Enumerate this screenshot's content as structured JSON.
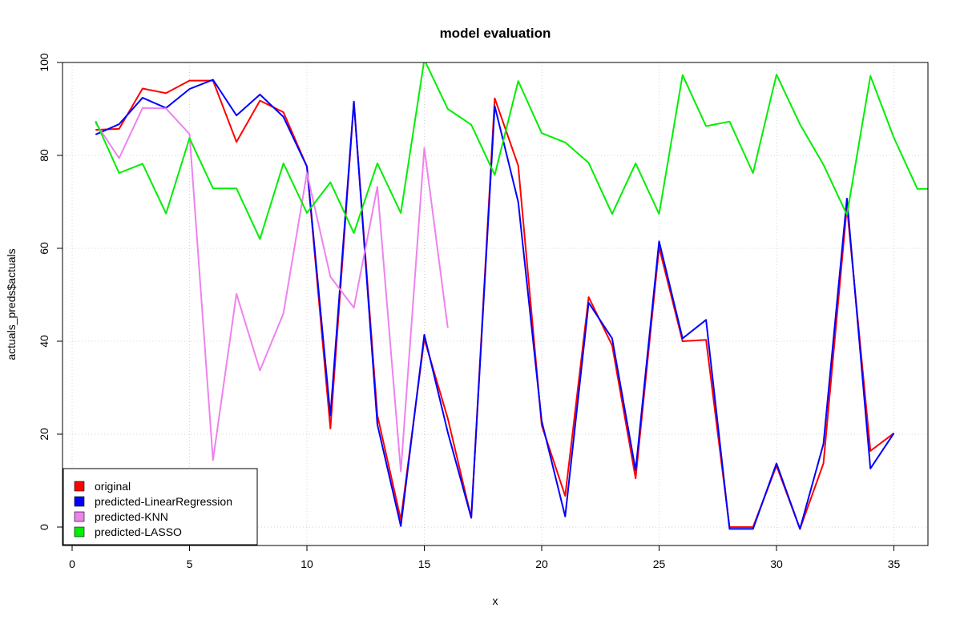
{
  "chart_data": {
    "type": "line",
    "title": "model evaluation",
    "xlabel": "x",
    "ylabel": "actuals_preds$actuals",
    "xlim": [
      0,
      36.5
    ],
    "ylim": [
      0,
      100
    ],
    "x_ticks": [
      0,
      5,
      10,
      15,
      20,
      25,
      30,
      35
    ],
    "y_ticks": [
      0,
      20,
      40,
      60,
      80,
      100
    ],
    "grid": true,
    "legend_position": "bottom-left",
    "series": [
      {
        "name": "original",
        "color": "#ff0000",
        "x": [
          1,
          2,
          3,
          4,
          5,
          6,
          7,
          8,
          9,
          10,
          11,
          12,
          13,
          14,
          15,
          16,
          17,
          18,
          19,
          20,
          21,
          22,
          23,
          24,
          25,
          26,
          27,
          28,
          29,
          30,
          31,
          32,
          33,
          34,
          35
        ],
        "values": [
          85.5,
          85.7,
          94.4,
          93.4,
          96.1,
          96.1,
          82.9,
          91.8,
          89.3,
          77.6,
          21.2,
          91.5,
          24.1,
          1.6,
          40.5,
          23.4,
          2.0,
          92.3,
          77.8,
          21.9,
          6.7,
          49.5,
          39.1,
          10.5,
          60.2,
          40.0,
          40.3,
          0,
          0,
          13.2,
          -0.4,
          13.7,
          69.0,
          16.4,
          20.2
        ]
      },
      {
        "name": "predicted-LinearRegression",
        "color": "#0000ff",
        "x": [
          1,
          2,
          3,
          4,
          5,
          6,
          7,
          8,
          9,
          10,
          11,
          12,
          13,
          14,
          15,
          16,
          17,
          18,
          19,
          20,
          21,
          22,
          23,
          24,
          25,
          26,
          27,
          28,
          29,
          30,
          31,
          32,
          33,
          34,
          35
        ],
        "values": [
          84.5,
          86.7,
          92.4,
          90.2,
          94.3,
          96.3,
          88.6,
          93.1,
          88.3,
          77.6,
          24.0,
          91.6,
          22.1,
          0.2,
          41.4,
          20.4,
          2.0,
          90.6,
          70.0,
          22.8,
          2.3,
          48.3,
          40.6,
          12.2,
          61.5,
          40.6,
          44.6,
          -0.4,
          -0.4,
          13.7,
          -0.4,
          17.9,
          70.7,
          12.6,
          20.2
        ]
      },
      {
        "name": "predicted-KNN",
        "color": "#ee82ee",
        "x": [
          1,
          2,
          3,
          4,
          5,
          6,
          7,
          8,
          9,
          10,
          11,
          12,
          13,
          14,
          15,
          16
        ],
        "values": [
          87.0,
          79.4,
          90.2,
          90.1,
          84.6,
          14.4,
          50.2,
          33.7,
          46.0,
          76.2,
          53.9,
          47.2,
          73.2,
          12.0,
          81.6,
          42.9
        ]
      },
      {
        "name": "predicted-LASSO",
        "color": "#00ee00",
        "x": [
          1,
          2,
          3,
          4,
          5,
          6,
          7,
          8,
          9,
          10,
          11,
          12,
          13,
          14,
          15,
          16,
          17,
          18,
          19,
          20,
          21,
          22,
          23,
          24,
          25,
          26,
          27,
          28,
          29,
          30,
          31,
          32,
          33,
          34,
          35,
          36,
          37
        ],
        "values": [
          87.4,
          76.2,
          78.2,
          67.5,
          83.7,
          72.9,
          72.9,
          62.0,
          78.3,
          67.6,
          74.2,
          63.3,
          78.3,
          67.6,
          100.6,
          90.0,
          86.6,
          75.8,
          96.0,
          84.8,
          82.8,
          78.4,
          67.4,
          78.3,
          67.4,
          97.3,
          86.3,
          87.3,
          76.2,
          97.4,
          86.7,
          78.0,
          67.2,
          97.1,
          83.8,
          72.8,
          72.8
        ]
      }
    ]
  }
}
